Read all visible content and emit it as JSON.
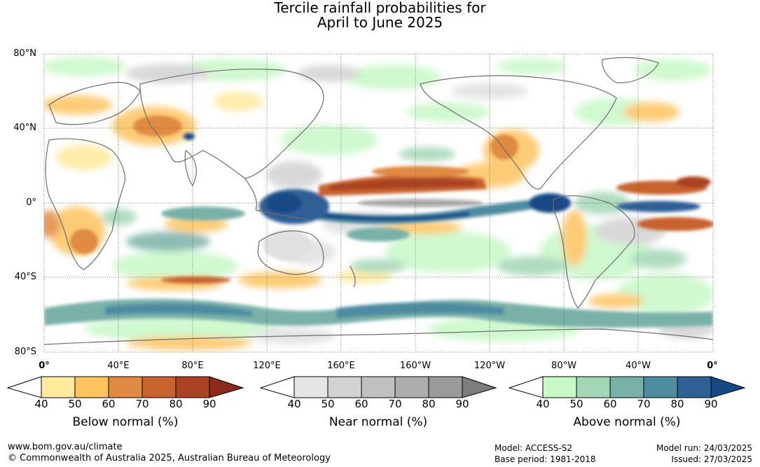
{
  "title": {
    "line1": "Tercile rainfall probabilities for",
    "line2": "April to June 2025"
  },
  "map": {
    "lat_labels": [
      "80°N",
      "40°N",
      "0°",
      "40°S",
      "80°S"
    ],
    "lon_labels": [
      "0°",
      "40°E",
      "80°E",
      "120°E",
      "160°E",
      "160°W",
      "120°W",
      "80°W",
      "40°W",
      "0°"
    ],
    "extent": {
      "lon_min": 0,
      "lon_max": 360,
      "lat_min": -80,
      "lat_max": 80
    },
    "gridlines": true,
    "colors": {
      "land_outline": "#6e6e6e",
      "grid": "#555555"
    }
  },
  "legends": [
    {
      "title": "Below normal (%)",
      "ticks": [
        "40",
        "50",
        "60",
        "70",
        "80",
        "90"
      ],
      "colors": [
        "#ffffff",
        "#fee99d",
        "#fdc35e",
        "#e08a43",
        "#c8622f",
        "#a94323",
        "#8b2a18"
      ]
    },
    {
      "title": "Near normal (%)",
      "ticks": [
        "40",
        "50",
        "60",
        "70",
        "80",
        "90"
      ],
      "colors": [
        "#ffffff",
        "#e5e5e5",
        "#d2d2d2",
        "#c0c0c0",
        "#adadad",
        "#9a9a9a",
        "#7d7d7d"
      ]
    },
    {
      "title": "Above normal (%)",
      "ticks": [
        "40",
        "50",
        "60",
        "70",
        "80",
        "90"
      ],
      "colors": [
        "#ffffff",
        "#c8f8c8",
        "#a3d6b6",
        "#79b1a8",
        "#4e8ca0",
        "#2e6096",
        "#154985"
      ]
    }
  ],
  "footer": {
    "website": "www.bom.gov.au/climate",
    "copyright": "© Commonwealth of Australia 2025, Australian Bureau of Meteorology",
    "model": "Model: ACCESS-S2",
    "base_period": "Base period: 1981-2018",
    "model_run": "Model run: 24/03/2025",
    "issued": "Issued: 27/03/2025"
  }
}
